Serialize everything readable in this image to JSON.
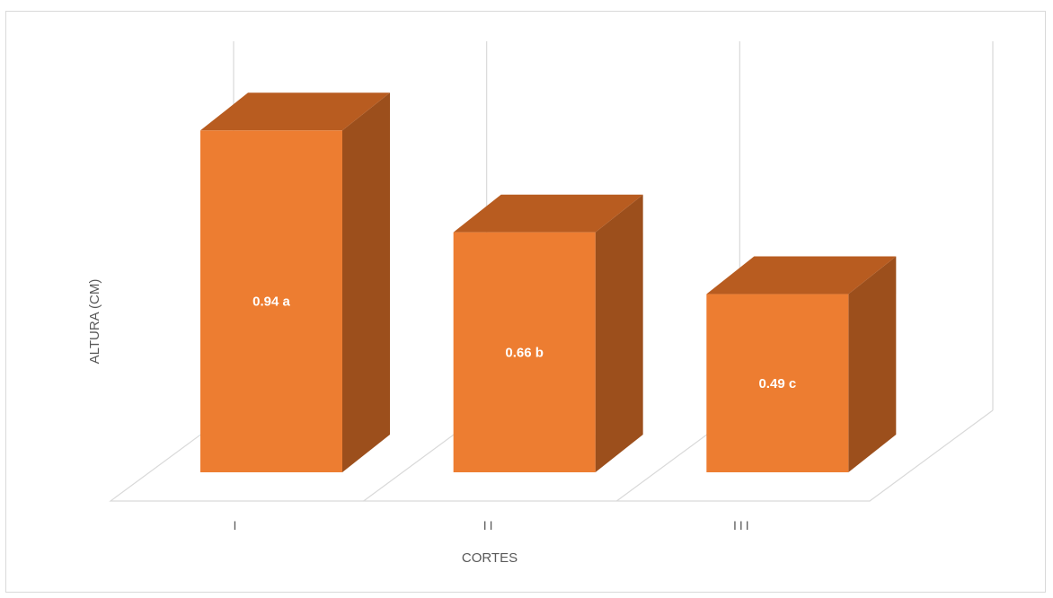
{
  "chart_data": {
    "type": "bar",
    "categories": [
      "I",
      "II",
      "III"
    ],
    "values": [
      0.94,
      0.66,
      0.49
    ],
    "data_labels": [
      "0.94 a",
      "0.66 b",
      "0.49 c"
    ],
    "xlabel": "CORTES",
    "ylabel": "ALTURA (CM)",
    "ylim": [
      0,
      1.0
    ],
    "grid": true,
    "style": "3d-column",
    "colors": {
      "front": "#ED7D31",
      "top": "#B85C20",
      "side": "#9C4F1C",
      "grid": "#d9d9d9"
    }
  }
}
